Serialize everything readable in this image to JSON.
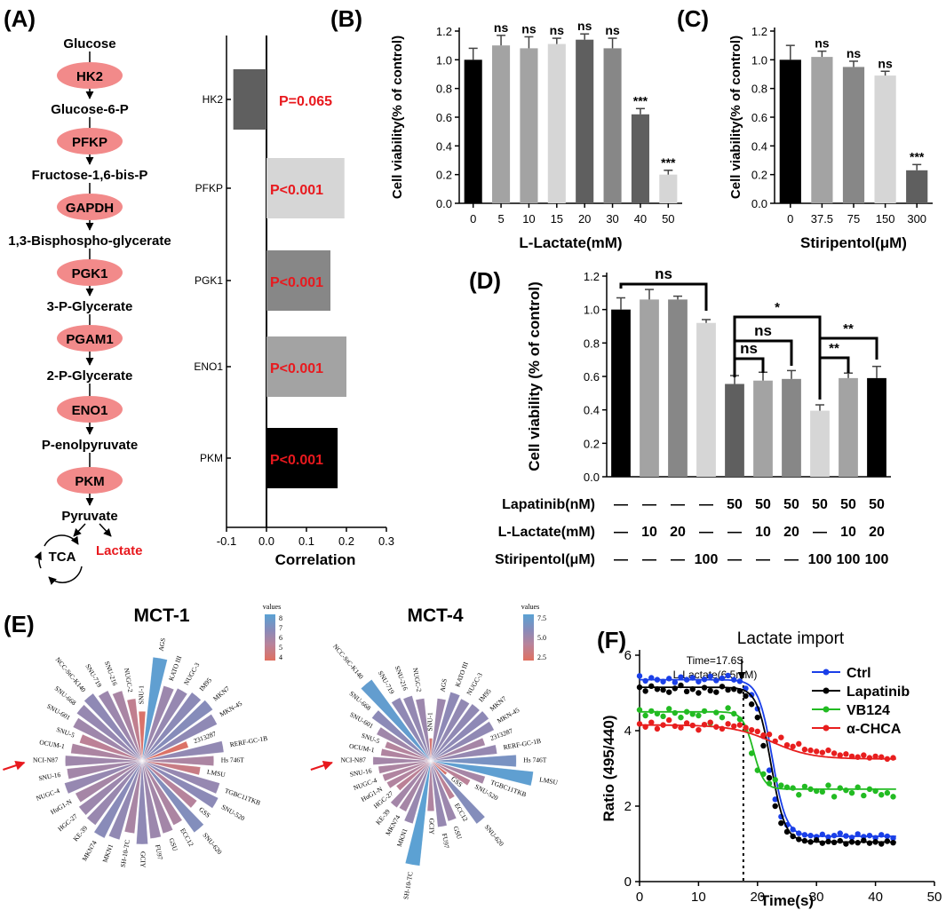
{
  "panel_labels": {
    "A": "(A)",
    "B": "(B)",
    "C": "(C)",
    "D": "(D)",
    "E": "(E)",
    "F": "(F)"
  },
  "colors": {
    "red_text": "#e8191e",
    "pathway_node": "#f28a8a",
    "black": "#000000",
    "dark_gray": "#5f5f5f",
    "mid_gray": "#878787",
    "light_gray": "#a3a3a3",
    "pale_gray": "#d6d6d6"
  },
  "pathway": {
    "metabolites": [
      "Glucose",
      "Glucose-6-P",
      "Fructose-1,6-bis-P",
      "1,3-Bisphospho-glycerate",
      "3-P-Glycerate",
      "2-P-Glycerate",
      "P-enolpyruvate",
      "Pyruvate"
    ],
    "enzymes": [
      "HK2",
      "PFKP",
      "GAPDH",
      "PGK1",
      "PGAM1",
      "ENO1",
      "PKM"
    ],
    "tca": "TCA",
    "lactate": "Lactate"
  },
  "chart_data": [
    {
      "id": "A-correlation",
      "type": "bar",
      "orientation": "horizontal",
      "categories": [
        "HK2",
        "PFKP",
        "PGK1",
        "ENO1",
        "PKM"
      ],
      "values": [
        -0.083,
        0.195,
        0.16,
        0.2,
        0.178
      ],
      "colors": [
        "#5f5f5f",
        "#d6d6d6",
        "#878787",
        "#a3a3a3",
        "#000000"
      ],
      "annotations": [
        "P=0.065",
        "P<0.001",
        "P<0.001",
        "P<0.001",
        "P<0.001"
      ],
      "xlabel": "Correlation",
      "xlim": [
        -0.1,
        0.3
      ],
      "xticks": [
        "-0.1",
        "0.0",
        "0.1",
        "0.2",
        "0.3"
      ]
    },
    {
      "id": "B-lactate",
      "type": "bar",
      "categories": [
        "0",
        "5",
        "10",
        "15",
        "20",
        "30",
        "40",
        "50"
      ],
      "values": [
        1.0,
        1.1,
        1.08,
        1.11,
        1.14,
        1.08,
        0.62,
        0.2
      ],
      "errors": [
        0.08,
        0.07,
        0.08,
        0.04,
        0.04,
        0.07,
        0.04,
        0.03
      ],
      "colors": [
        "#000000",
        "#a3a3a3",
        "#a3a3a3",
        "#d6d6d6",
        "#5f5f5f",
        "#878787",
        "#5f5f5f",
        "#d6d6d6"
      ],
      "significance": [
        "",
        "ns",
        "ns",
        "ns",
        "ns",
        "ns",
        "***",
        "***"
      ],
      "xlabel": "L-Lactate(mM)",
      "ylabel": "Cell viability(% of control)",
      "ylim": [
        0,
        1.2
      ],
      "yticks": [
        "0.0",
        "0.2",
        "0.4",
        "0.6",
        "0.8",
        "1.0",
        "1.2"
      ]
    },
    {
      "id": "C-stiripentol",
      "type": "bar",
      "categories": [
        "0",
        "37.5",
        "75",
        "150",
        "300"
      ],
      "values": [
        1.0,
        1.02,
        0.95,
        0.89,
        0.23
      ],
      "errors": [
        0.1,
        0.04,
        0.04,
        0.03,
        0.04
      ],
      "colors": [
        "#000000",
        "#a3a3a3",
        "#878787",
        "#d6d6d6",
        "#5f5f5f"
      ],
      "significance": [
        "",
        "ns",
        "ns",
        "ns",
        "***"
      ],
      "xlabel": "Stiripentol(μM)",
      "ylabel": "Cell viability(% of control)",
      "ylim": [
        0,
        1.2
      ],
      "yticks": [
        "0.0",
        "0.2",
        "0.4",
        "0.6",
        "0.8",
        "1.0",
        "1.2"
      ]
    },
    {
      "id": "D-combination",
      "type": "bar",
      "categories": [
        "1",
        "2",
        "3",
        "4",
        "5",
        "6",
        "7",
        "8",
        "9",
        "10"
      ],
      "values": [
        1.0,
        1.06,
        1.06,
        0.92,
        0.555,
        0.575,
        0.585,
        0.395,
        0.59,
        0.59
      ],
      "errors": [
        0.07,
        0.06,
        0.02,
        0.02,
        0.05,
        0.05,
        0.05,
        0.035,
        0.03,
        0.07
      ],
      "colors": [
        "#000000",
        "#a3a3a3",
        "#878787",
        "#d6d6d6",
        "#5f5f5f",
        "#a3a3a3",
        "#878787",
        "#d6d6d6",
        "#a3a3a3",
        "#000000"
      ],
      "ylabel": "Cell viability (% of control)",
      "ylim": [
        0,
        1.2
      ],
      "yticks": [
        "0.0",
        "0.2",
        "0.4",
        "0.6",
        "0.8",
        "1.0",
        "1.2"
      ],
      "comparisons": [
        {
          "from": 1,
          "to": 4,
          "label": "ns"
        },
        {
          "from": 5,
          "to": 8,
          "label": "*"
        },
        {
          "from": 5,
          "to": 7,
          "label": "ns"
        },
        {
          "from": 5,
          "to": 6,
          "label": "ns"
        },
        {
          "from": 8,
          "to": 10,
          "label": "**"
        },
        {
          "from": 8,
          "to": 9,
          "label": "**"
        }
      ],
      "treatment_table": {
        "rows": [
          {
            "label": "Lapatinib(nM)",
            "cells": [
              "—",
              "—",
              "—",
              "—",
              "50",
              "50",
              "50",
              "50",
              "50",
              "50"
            ]
          },
          {
            "label": "L-Lactate(mM)",
            "cells": [
              "—",
              "10",
              "20",
              "—",
              "—",
              "10",
              "20",
              "—",
              "10",
              "20"
            ]
          },
          {
            "label": "Stiripentol(μM)",
            "cells": [
              "—",
              "—",
              "—",
              "100",
              "—",
              "—",
              "—",
              "100",
              "100",
              "100"
            ]
          }
        ]
      }
    },
    {
      "id": "E-MCT-1",
      "type": "radial-bar",
      "title": "MCT-1",
      "legend_title": "values",
      "legend_ticks": [
        "8",
        "7",
        "6",
        "5",
        "4"
      ],
      "legend_range": [
        3.5,
        8.2
      ],
      "categories": [
        "LMSU",
        "TGBC11TKB",
        "SNU-520",
        "GSS",
        "SNU-620",
        "ECC12",
        "GSU",
        "FU97",
        "GCIY",
        "SH-10-TC",
        "MKN1",
        "MKN74",
        "KE-39",
        "HGC-27",
        "HuG1-N",
        "NUGC-4",
        "SNU-16",
        "NCI-N87",
        "OCUM-1",
        "SNU-5",
        "SNU-601",
        "SNU-668",
        "NCC-StC-K140",
        "SNU-719",
        "SNU-216",
        "NUGC-2",
        "SNU-1",
        "AGS",
        "KATO III",
        "NUGC-3",
        "IM95",
        "MKN7",
        "MKN-45",
        "2313287",
        "RERF-GC-1B",
        "Hs 746T"
      ],
      "values": [
        4.5,
        6.2,
        6.5,
        5.2,
        6.8,
        5.5,
        5.8,
        6.0,
        6.4,
        5.6,
        6.3,
        6.6,
        6.1,
        6.0,
        5.7,
        6.2,
        5.8,
        5.9,
        5.5,
        5.0,
        5.9,
        6.2,
        6.4,
        6.0,
        5.6,
        4.8,
        3.8,
        8.0,
        6.0,
        6.2,
        6.5,
        6.7,
        6.4,
        3.7,
        6.3,
        5.5
      ],
      "highlight": "NCI-N87"
    },
    {
      "id": "E-MCT-4",
      "type": "radial-bar",
      "title": "MCT-4",
      "legend_title": "values",
      "legend_ticks": [
        "7.5",
        "5.0",
        "2.5"
      ],
      "legend_range": [
        1.0,
        8.5
      ],
      "categories": [
        "LMSU",
        "TGBC11TKB",
        "SNU-520",
        "GSS",
        "SNU-620",
        "ECC12",
        "GSU",
        "FU97",
        "GCIY",
        "SH-10-TC",
        "MKN1",
        "MKN74",
        "KE-39",
        "HGC-27",
        "HuG1-N",
        "NUGC-4",
        "SNU-16",
        "NCI-N87",
        "OCUM-1",
        "SNU-5",
        "SNU-601",
        "SNU-668",
        "NCC-StC-K140",
        "SNU-719",
        "SNU-216",
        "NUGC-2",
        "SNU-1",
        "AGS",
        "KATO III",
        "NUGC-3",
        "IM95",
        "MKN7",
        "MKN-45",
        "2313287",
        "RERF-GC-1B",
        "Hs 746T"
      ],
      "values": [
        8.2,
        4.5,
        3.5,
        1.6,
        6.2,
        3.4,
        5.0,
        5.3,
        4.0,
        8.4,
        5.2,
        4.5,
        4.6,
        3.4,
        3.9,
        4.0,
        4.2,
        4.6,
        4.0,
        3.8,
        4.8,
        5.8,
        8.0,
        5.6,
        5.4,
        5.0,
        1.8,
        5.0,
        5.7,
        5.5,
        5.6,
        5.7,
        5.6,
        4.5,
        5.3,
        6.8
      ],
      "highlight": "NCI-N87"
    },
    {
      "id": "F-lactate-import",
      "type": "scatter",
      "title": "Lactate import",
      "xlabel": "Time(s)",
      "ylabel": "Ratio (495/440)",
      "xlim": [
        0,
        50
      ],
      "ylim": [
        0,
        6
      ],
      "xticks": [
        "0",
        "10",
        "20",
        "30",
        "40",
        "50"
      ],
      "yticks": [
        "0",
        "2",
        "4",
        "6"
      ],
      "marker_annotation": {
        "line1": "Time=17.6S",
        "line2": "L-Lactate(6.5mM)",
        "x": 17.6
      },
      "series": [
        {
          "name": "Ctrl",
          "color": "#1a3fe8",
          "top": 5.35,
          "bottom": 1.2,
          "x0": 22.5,
          "k": 0.85,
          "x": [
            0,
            1,
            2,
            3,
            4,
            5,
            6,
            7,
            8,
            9,
            10,
            11,
            12,
            13,
            14,
            15,
            16,
            17,
            18,
            19,
            20,
            21,
            22,
            23,
            24,
            25,
            26,
            27,
            28,
            29,
            30,
            31,
            32,
            33,
            34,
            35,
            36,
            37,
            38,
            39,
            40,
            41,
            42,
            43
          ],
          "y": [
            5.45,
            5.32,
            5.4,
            5.35,
            5.3,
            5.38,
            5.28,
            5.42,
            5.35,
            5.4,
            5.3,
            5.36,
            5.44,
            5.33,
            5.39,
            5.46,
            5.35,
            5.31,
            5.12,
            4.95,
            4.58,
            3.85,
            2.95,
            2.18,
            1.72,
            1.5,
            1.38,
            1.28,
            1.24,
            1.22,
            1.19,
            1.25,
            1.18,
            1.22,
            1.28,
            1.21,
            1.17,
            1.26,
            1.19,
            1.22,
            1.16,
            1.24,
            1.2,
            1.15
          ]
        },
        {
          "name": "Lapatinib",
          "color": "#000000",
          "top": 5.15,
          "bottom": 1.05,
          "x0": 22.3,
          "k": 0.85,
          "x": [
            0,
            1,
            2,
            3,
            4,
            5,
            6,
            7,
            8,
            9,
            10,
            11,
            12,
            13,
            14,
            15,
            16,
            17,
            18,
            19,
            20,
            21,
            22,
            23,
            24,
            25,
            26,
            27,
            28,
            29,
            30,
            31,
            32,
            33,
            34,
            35,
            36,
            37,
            38,
            39,
            40,
            41,
            42,
            43
          ],
          "y": [
            5.15,
            5.05,
            5.18,
            5.1,
            5.08,
            5.02,
            5.12,
            5.2,
            5.04,
            5.1,
            5.0,
            5.14,
            5.06,
            5.02,
            5.17,
            5.08,
            5.1,
            5.05,
            4.92,
            4.7,
            4.35,
            3.6,
            2.75,
            2.0,
            1.55,
            1.32,
            1.2,
            1.12,
            1.08,
            1.05,
            1.1,
            1.02,
            1.06,
            1.04,
            1.08,
            1.0,
            1.05,
            1.03,
            1.09,
            1.02,
            1.05,
            1.0,
            1.07,
            1.03
          ]
        },
        {
          "name": "VB124",
          "color": "#22bb22",
          "top": 4.5,
          "bottom": 2.45,
          "x0": 19.3,
          "k": 1.1,
          "x": [
            0,
            1,
            2,
            3,
            4,
            5,
            6,
            7,
            8,
            9,
            10,
            11,
            12,
            13,
            14,
            15,
            16,
            17,
            18,
            19,
            20,
            21,
            22,
            23,
            24,
            25,
            26,
            27,
            28,
            29,
            30,
            31,
            32,
            33,
            34,
            35,
            36,
            37,
            38,
            39,
            40,
            41,
            42,
            43
          ],
          "y": [
            4.55,
            4.4,
            4.52,
            4.45,
            4.38,
            4.58,
            4.47,
            4.35,
            4.5,
            4.44,
            4.4,
            4.52,
            4.2,
            4.48,
            4.35,
            4.6,
            4.45,
            4.3,
            4.05,
            3.4,
            2.95,
            2.85,
            2.6,
            2.7,
            2.55,
            2.5,
            2.48,
            2.3,
            2.52,
            2.45,
            2.4,
            2.38,
            2.55,
            2.25,
            2.48,
            2.42,
            2.35,
            2.5,
            2.28,
            2.45,
            2.4,
            2.3,
            2.35,
            2.25
          ]
        },
        {
          "name": "α-CHCA",
          "color": "#e81e1e",
          "top": 4.15,
          "bottom": 3.25,
          "x0": 22.5,
          "k": 0.3,
          "x": [
            0,
            1,
            2,
            3,
            4,
            5,
            6,
            7,
            8,
            9,
            10,
            11,
            12,
            13,
            14,
            15,
            16,
            17,
            18,
            19,
            20,
            21,
            22,
            23,
            24,
            25,
            26,
            27,
            28,
            29,
            30,
            31,
            32,
            33,
            34,
            35,
            36,
            37,
            38,
            39,
            40,
            41,
            42,
            43
          ],
          "y": [
            4.18,
            4.1,
            4.22,
            4.05,
            4.15,
            4.28,
            4.12,
            4.08,
            4.2,
            4.14,
            4.02,
            4.16,
            4.22,
            4.1,
            4.05,
            4.18,
            4.12,
            4.15,
            4.08,
            4.02,
            3.98,
            3.88,
            3.9,
            3.72,
            3.82,
            3.62,
            3.58,
            3.65,
            3.5,
            3.48,
            3.45,
            3.42,
            3.48,
            3.4,
            3.35,
            3.38,
            3.32,
            3.3,
            3.35,
            3.28,
            3.32,
            3.3,
            3.25,
            3.28
          ]
        }
      ]
    }
  ]
}
